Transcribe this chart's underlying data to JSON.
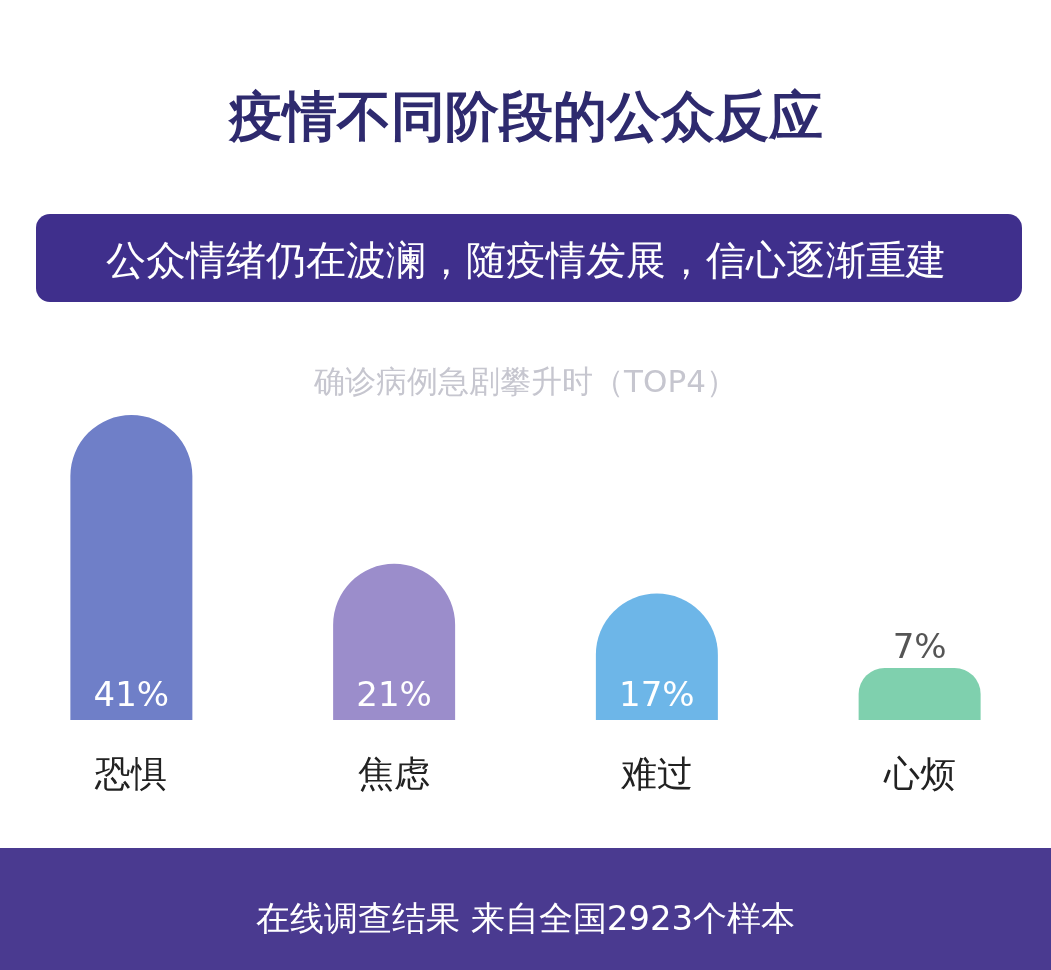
{
  "chart_data": {
    "type": "bar",
    "title": "疫情不同阶段的公众反应",
    "subtitle": "公众情绪仍在波澜，随疫情发展，信心逐渐重建",
    "categories": [
      "恐惧",
      "焦虑",
      "难过",
      "心烦"
    ],
    "values": [
      41,
      21,
      17,
      7
    ],
    "value_labels": [
      "41%",
      "21%",
      "17%",
      "7%"
    ],
    "colors": [
      "#6f7fc8",
      "#9b8dcb",
      "#6db6e8",
      "#7fd0ae"
    ],
    "annotations": [
      "确诊病例急剧攀升时（TOP4）",
      "在线调查结果 来自全国2923个样本"
    ]
  }
}
